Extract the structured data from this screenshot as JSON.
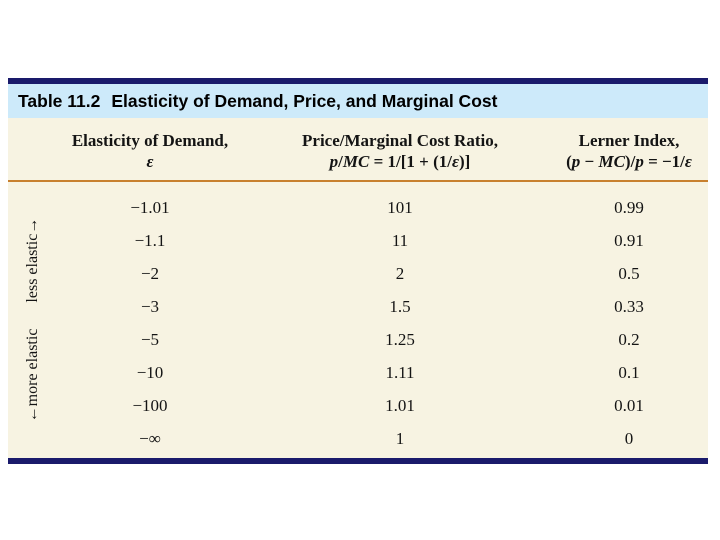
{
  "table": {
    "title_prefix": "Table 11.2",
    "title_rest": "Elasticity of Demand, Price, and Marginal Cost",
    "colors": {
      "border_navy": "#1a1a6b",
      "title_band_blue": "#cdeafa",
      "body_cream": "#f7f3e2",
      "rule_orange": "#c8802e"
    },
    "columns": [
      {
        "label_line1": "Elasticity of Demand,",
        "label_line2": "*ε*"
      },
      {
        "label_line1": "Price/Marginal Cost Ratio,",
        "label_line2": "*p*/*MC* = 1/[1 + (1/*ε*)]"
      },
      {
        "label_line1": "Lerner Index,",
        "label_line2": "(*p* − *MC*)/*p* = −1/*ε*"
      }
    ],
    "side_label": {
      "bottom_text": "←more elastic",
      "top_text": "less elastic→"
    },
    "rows": [
      {
        "elasticity": "−1.01",
        "ratio": "101",
        "lerner": "0.99"
      },
      {
        "elasticity": "−1.1",
        "ratio": "11",
        "lerner": "0.91"
      },
      {
        "elasticity": "−2",
        "ratio": "2",
        "lerner": "0.5"
      },
      {
        "elasticity": "−3",
        "ratio": "1.5",
        "lerner": "0.33"
      },
      {
        "elasticity": "−5",
        "ratio": "1.25",
        "lerner": "0.2"
      },
      {
        "elasticity": "−10",
        "ratio": "1.11",
        "lerner": "0.1"
      },
      {
        "elasticity": "−100",
        "ratio": "1.01",
        "lerner": "0.01"
      },
      {
        "elasticity": "−∞",
        "ratio": "1",
        "lerner": "0"
      }
    ]
  }
}
